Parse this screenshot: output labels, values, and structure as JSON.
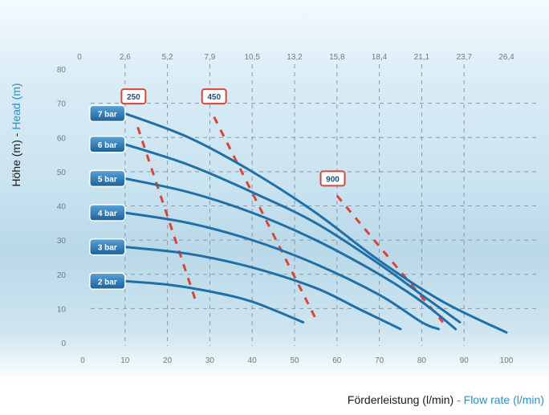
{
  "chart_data": {
    "type": "line",
    "ylabel_de": "Höhe (m)",
    "ylabel_sep": " - ",
    "ylabel_en": "Head (m)",
    "xlabel_de": "Förderleistung (l/min)",
    "xlabel_sep": " - ",
    "xlabel_en": "Flow rate (l/min)",
    "xlim": [
      0,
      100
    ],
    "ylim": [
      0,
      80
    ],
    "x_ticks": [
      "0",
      "10",
      "20",
      "30",
      "40",
      "50",
      "60",
      "70",
      "80",
      "90",
      "100"
    ],
    "x_ticks_top": [
      "0",
      "2,6",
      "5,2",
      "7,9",
      "10,5",
      "13,2",
      "15,8",
      "18,4",
      "21,1",
      "23,7",
      "26,4"
    ],
    "y_ticks": [
      "0",
      "10",
      "20",
      "30",
      "40",
      "50",
      "60",
      "70",
      "80"
    ],
    "grid": true,
    "series": [
      {
        "name": "7 bar",
        "points": [
          [
            10,
            67
          ],
          [
            25,
            60
          ],
          [
            40,
            50
          ],
          [
            55,
            38
          ],
          [
            70,
            24
          ],
          [
            85,
            12
          ],
          [
            100,
            3
          ]
        ]
      },
      {
        "name": "6 bar",
        "points": [
          [
            10,
            58
          ],
          [
            25,
            52
          ],
          [
            40,
            44
          ],
          [
            55,
            35
          ],
          [
            70,
            23
          ],
          [
            80,
            14
          ],
          [
            89,
            6
          ]
        ]
      },
      {
        "name": "5 bar",
        "points": [
          [
            10,
            48
          ],
          [
            25,
            44
          ],
          [
            40,
            38
          ],
          [
            55,
            30
          ],
          [
            70,
            20
          ],
          [
            80,
            12
          ],
          [
            88,
            4
          ]
        ]
      },
      {
        "name": "4 bar",
        "points": [
          [
            10,
            38
          ],
          [
            25,
            35
          ],
          [
            40,
            30
          ],
          [
            55,
            23
          ],
          [
            70,
            14
          ],
          [
            80,
            6
          ],
          [
            84,
            4
          ]
        ]
      },
      {
        "name": "3 bar",
        "points": [
          [
            10,
            28
          ],
          [
            25,
            26
          ],
          [
            40,
            22
          ],
          [
            55,
            16
          ],
          [
            65,
            10
          ],
          [
            75,
            4
          ]
        ]
      },
      {
        "name": "2 bar",
        "points": [
          [
            10,
            18
          ],
          [
            20,
            17
          ],
          [
            30,
            15
          ],
          [
            40,
            12
          ],
          [
            52,
            6
          ]
        ]
      }
    ],
    "speed_curves": [
      {
        "label": "250",
        "label_at": [
          12,
          72
        ],
        "points": [
          [
            13,
            63
          ],
          [
            27,
            11
          ]
        ]
      },
      {
        "label": "450",
        "label_at": [
          31,
          72
        ],
        "points": [
          [
            31,
            66
          ],
          [
            55,
            7
          ]
        ]
      },
      {
        "label": "900",
        "label_at": [
          59,
          48
        ],
        "points": [
          [
            60,
            43
          ],
          [
            85,
            6
          ]
        ]
      }
    ],
    "colors": {
      "curve": "#1f6fa8",
      "speed": "#d9453a",
      "label_box": "#2d77b5",
      "grid": "#8a99a6"
    }
  }
}
